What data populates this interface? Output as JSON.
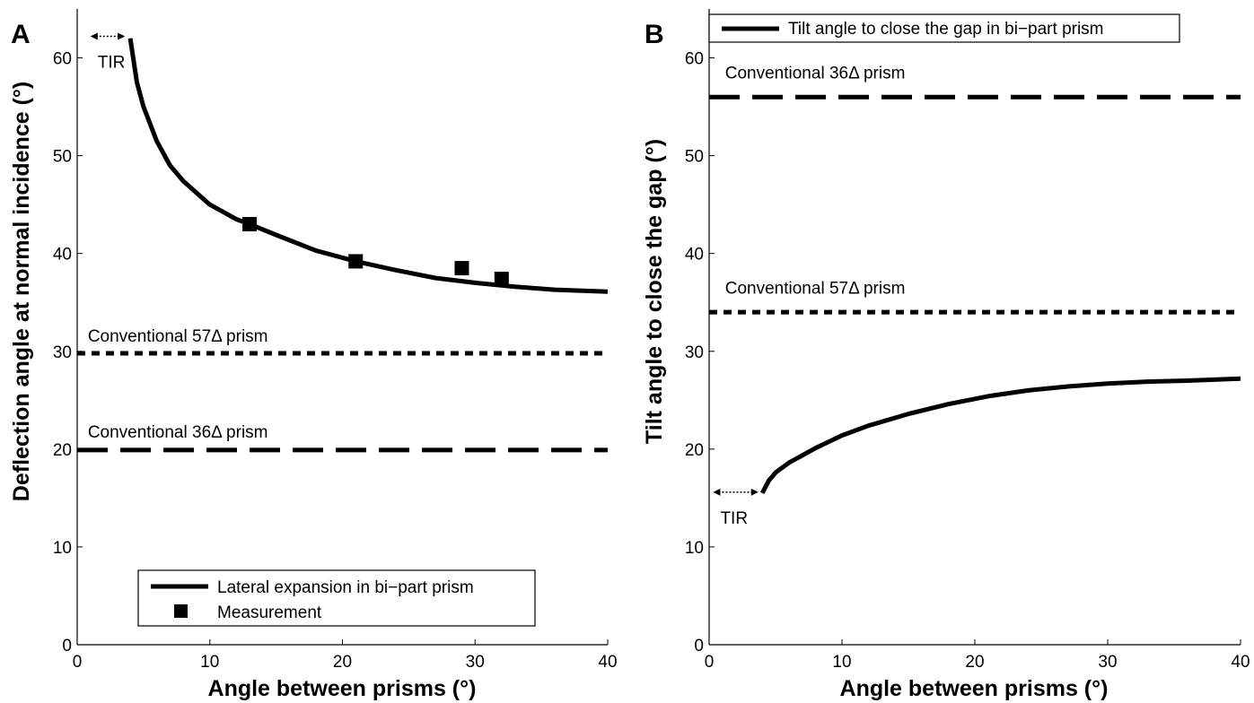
{
  "chart_data": [
    {
      "type": "line",
      "panel_letter": "A",
      "xlabel": "Angle between prisms (°)",
      "ylabel": "Deflection angle at normal incidence (°)",
      "xlim": [
        0,
        40
      ],
      "ylim": [
        0,
        65
      ],
      "xticks": [
        0,
        10,
        20,
        30,
        40
      ],
      "yticks": [
        0,
        10,
        20,
        30,
        40,
        50,
        60
      ],
      "grid": false,
      "legend_placement": "bottom-center",
      "series": [
        {
          "name": "Lateral expansion in bi−part prism",
          "style": "solid",
          "x": [
            4.0,
            4.5,
            5,
            6,
            7,
            8,
            10,
            12,
            13,
            15,
            18,
            21,
            24,
            27,
            30,
            33,
            36,
            40
          ],
          "y": [
            62.0,
            57.5,
            55.0,
            51.5,
            49.0,
            47.4,
            45.0,
            43.5,
            43.0,
            41.9,
            40.3,
            39.2,
            38.3,
            37.5,
            37.0,
            36.6,
            36.3,
            36.1
          ]
        },
        {
          "name": "Measurement",
          "style": "square-markers",
          "x": [
            13,
            21,
            29,
            32
          ],
          "y": [
            43.0,
            39.2,
            38.5,
            37.4
          ]
        },
        {
          "style": "dotted",
          "x": [
            0,
            40
          ],
          "y": [
            29.8,
            29.8
          ]
        },
        {
          "style": "dashed",
          "x": [
            0,
            40
          ],
          "y": [
            19.9,
            19.9
          ]
        }
      ],
      "annotations": [
        {
          "text": "TIR",
          "arrow_from": 1,
          "arrow_to": 3.6,
          "at_y": 62.2
        },
        {
          "text": "Conventional 57Δ prism",
          "x": 0.8,
          "y": 31.0
        },
        {
          "text": "Conventional 36Δ prism",
          "x": 0.8,
          "y": 21.2
        }
      ]
    },
    {
      "type": "line",
      "panel_letter": "B",
      "xlabel": "Angle between prisms (°)",
      "ylabel": "Tilt angle to close the gap (°)",
      "xlim": [
        0,
        40
      ],
      "ylim": [
        0,
        65
      ],
      "xticks": [
        0,
        10,
        20,
        30,
        40
      ],
      "yticks": [
        0,
        10,
        20,
        30,
        40,
        50,
        60
      ],
      "grid": false,
      "legend_placement": "top",
      "series": [
        {
          "name": "Tilt angle to close the gap in bi−part prism",
          "style": "solid",
          "x": [
            4.0,
            4.5,
            5,
            6,
            8,
            10,
            12,
            15,
            18,
            21,
            24,
            27,
            30,
            33,
            36,
            40
          ],
          "y": [
            15.5,
            16.8,
            17.6,
            18.6,
            20.1,
            21.4,
            22.4,
            23.6,
            24.6,
            25.4,
            26.0,
            26.4,
            26.7,
            26.9,
            27.0,
            27.2
          ]
        },
        {
          "style": "dashed",
          "x": [
            0,
            40
          ],
          "y": [
            56.0,
            56.0
          ]
        },
        {
          "style": "dotted",
          "x": [
            0,
            40
          ],
          "y": [
            34.0,
            34.0
          ]
        }
      ],
      "annotations": [
        {
          "text": "TIR",
          "arrow_from": 0.3,
          "arrow_to": 3.7,
          "at_y": 15.6
        },
        {
          "text": "Conventional 36Δ prism",
          "x": 1.2,
          "y": 57.9
        },
        {
          "text": "Conventional 57Δ prism",
          "x": 1.2,
          "y": 35.9
        }
      ]
    }
  ]
}
